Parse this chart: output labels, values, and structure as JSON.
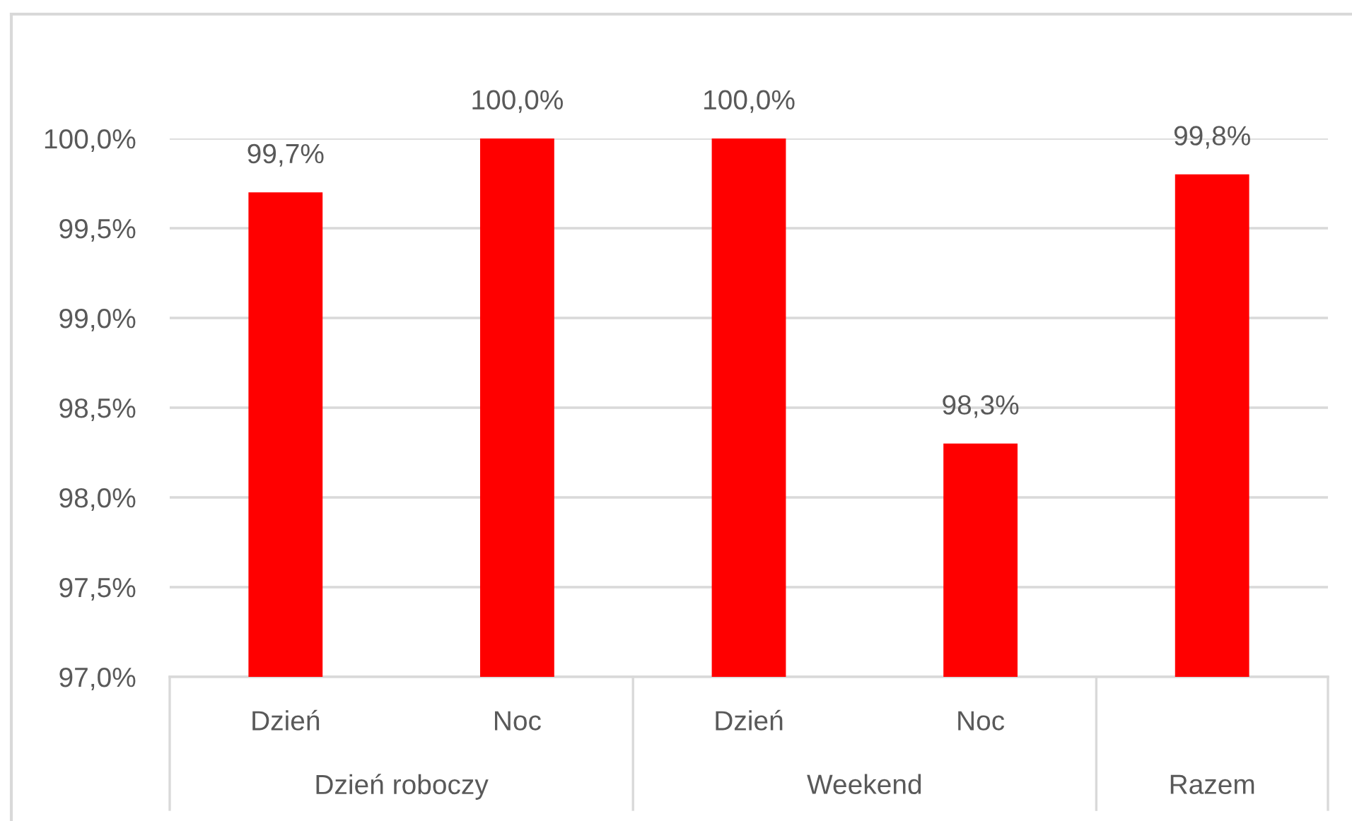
{
  "chart_data": {
    "type": "bar",
    "categories": [
      "Dzień",
      "Noc",
      "Dzień",
      "Noc",
      null
    ],
    "values": [
      99.7,
      100.0,
      100.0,
      98.3,
      99.8
    ],
    "value_labels": [
      "99,7%",
      "100,0%",
      "100,0%",
      "98,3%",
      "99,8%"
    ],
    "color": "#ff0000",
    "ylim": [
      97,
      100
    ],
    "yticks": [
      {
        "value": 97,
        "label": "97,0%"
      },
      {
        "value": 97.5,
        "label": "97,5%"
      },
      {
        "value": 98,
        "label": "98,0%"
      },
      {
        "value": 98.5,
        "label": "98,5%"
      },
      {
        "value": 99,
        "label": "99,0%"
      },
      {
        "value": 99.5,
        "label": "99,5%"
      },
      {
        "value": 100,
        "label": "100,0%"
      }
    ],
    "grid": "y",
    "annotations": [
      "Dzień roboczy",
      "Weekend",
      "Razem"
    ]
  }
}
